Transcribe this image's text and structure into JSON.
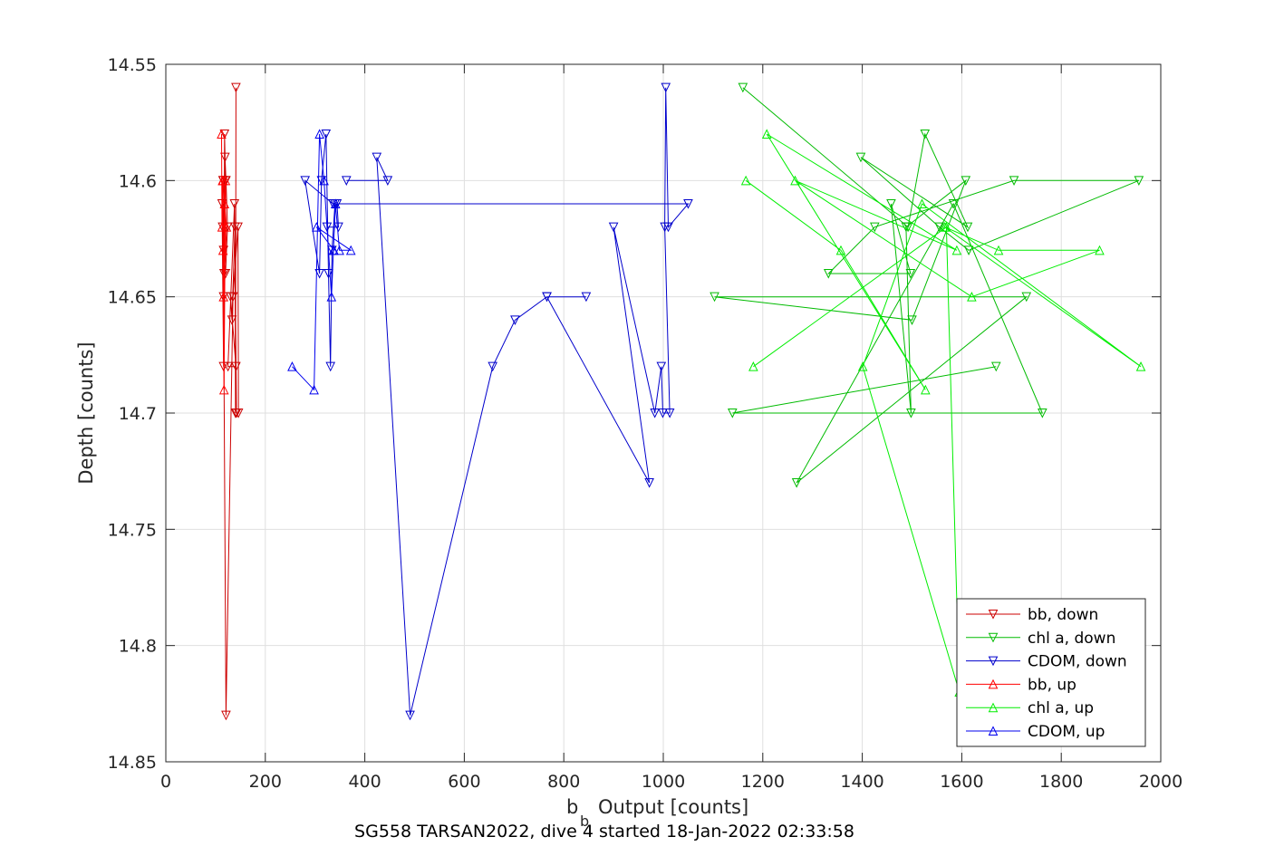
{
  "figure": {
    "caption": "SG558 TARSAN2022, dive 4 started 18-Jan-2022 02:33:58"
  },
  "chart_data": {
    "type": "line",
    "xlabel_main": "b",
    "xlabel_sub": "b",
    "xlabel_rest": "Output [counts]",
    "ylabel": "Depth [counts]",
    "xlim": [
      0,
      2000
    ],
    "ylim": [
      14.55,
      14.85
    ],
    "y_reversed": true,
    "grid": true,
    "legend_placement": "bottom-right",
    "x_ticks": [
      0,
      200,
      400,
      600,
      800,
      1000,
      1200,
      1400,
      1600,
      1800,
      2000
    ],
    "x_tick_labels": [
      "0",
      "200",
      "400",
      "600",
      "800",
      "1000",
      "1200",
      "1400",
      "1600",
      "1800",
      "2000"
    ],
    "y_ticks": [
      14.55,
      14.6,
      14.65,
      14.7,
      14.75,
      14.8,
      14.85
    ],
    "y_tick_labels": [
      "14.55",
      "14.6",
      "14.65",
      "14.7",
      "14.75",
      "14.8",
      "14.85"
    ],
    "series": [
      {
        "name": "bb, down",
        "color": "#cc0000",
        "marker": "triangle-down",
        "points": [
          [
            141,
            14.56
          ],
          [
            140,
            14.7
          ],
          [
            139,
            14.62
          ],
          [
            133,
            14.66
          ],
          [
            130,
            14.65
          ],
          [
            141,
            14.68
          ],
          [
            125,
            14.68
          ],
          [
            138,
            14.61
          ],
          [
            142,
            14.7
          ],
          [
            146,
            14.7
          ],
          [
            145,
            14.62
          ],
          [
            135,
            14.65
          ],
          [
            121,
            14.83
          ],
          [
            116,
            14.65
          ],
          [
            120,
            14.6
          ],
          [
            118,
            14.58
          ],
          [
            117,
            14.64
          ],
          [
            115,
            14.6
          ],
          [
            114,
            14.62
          ],
          [
            113,
            14.61
          ],
          [
            116,
            14.68
          ],
          [
            119,
            14.59
          ],
          [
            121,
            14.6
          ],
          [
            124,
            14.62
          ],
          [
            120,
            14.64
          ],
          [
            116,
            14.63
          ],
          [
            115,
            14.6
          ]
        ]
      },
      {
        "name": "chl a, down",
        "color": "#00bb00",
        "marker": "triangle-down",
        "points": [
          [
            1160,
            14.56
          ],
          [
            1492,
            14.62
          ],
          [
            1526,
            14.58
          ],
          [
            1612,
            14.62
          ],
          [
            1397,
            14.59
          ],
          [
            1555,
            14.62
          ],
          [
            1614,
            14.63
          ],
          [
            1956,
            14.6
          ],
          [
            1705,
            14.6
          ],
          [
            1425,
            14.62
          ],
          [
            1332,
            14.64
          ],
          [
            1497,
            14.64
          ],
          [
            1458,
            14.61
          ],
          [
            1498,
            14.7
          ],
          [
            1488,
            14.62
          ],
          [
            1608,
            14.6
          ],
          [
            1500,
            14.66
          ],
          [
            1103,
            14.65
          ],
          [
            1730,
            14.65
          ],
          [
            1268,
            14.73
          ],
          [
            1583,
            14.61
          ],
          [
            1762,
            14.7
          ],
          [
            1139,
            14.7
          ],
          [
            1669,
            14.68
          ]
        ]
      },
      {
        "name": "CDOM, down",
        "color": "#0000cc",
        "marker": "triangle-down",
        "points": [
          [
            363,
            14.6
          ],
          [
            446,
            14.6
          ],
          [
            424,
            14.59
          ],
          [
            491,
            14.83
          ],
          [
            657,
            14.68
          ],
          [
            702,
            14.66
          ],
          [
            766,
            14.65
          ],
          [
            845,
            14.65
          ],
          [
            766,
            14.65
          ],
          [
            972,
            14.73
          ],
          [
            900,
            14.62
          ],
          [
            983,
            14.7
          ],
          [
            996,
            14.68
          ],
          [
            999,
            14.7
          ],
          [
            1013,
            14.7
          ],
          [
            1003,
            14.62
          ],
          [
            1005,
            14.56
          ],
          [
            1010,
            14.62
          ],
          [
            1050,
            14.61
          ],
          [
            336,
            14.61
          ],
          [
            280,
            14.6
          ],
          [
            309,
            14.64
          ],
          [
            313,
            14.6
          ],
          [
            322,
            14.58
          ],
          [
            327,
            14.64
          ],
          [
            331,
            14.68
          ],
          [
            334,
            14.63
          ],
          [
            340,
            14.61
          ],
          [
            344,
            14.61
          ],
          [
            347,
            14.62
          ],
          [
            324,
            14.62
          ]
        ]
      },
      {
        "name": "bb, up",
        "color": "#ff0000",
        "marker": "triangle-up",
        "points": [
          [
            112,
            14.58
          ],
          [
            113,
            14.62
          ],
          [
            114,
            14.6
          ],
          [
            115,
            14.63
          ],
          [
            117,
            14.69
          ],
          [
            120,
            14.6
          ],
          [
            118,
            14.61
          ],
          [
            116,
            14.65
          ],
          [
            122,
            14.62
          ],
          [
            115,
            14.6
          ]
        ]
      },
      {
        "name": "chl a, up",
        "color": "#00ee00",
        "marker": "triangle-up",
        "points": [
          [
            1166,
            14.6
          ],
          [
            1357,
            14.63
          ],
          [
            1527,
            14.69
          ],
          [
            1208,
            14.58
          ],
          [
            1590,
            14.63
          ],
          [
            1265,
            14.6
          ],
          [
            1620,
            14.65
          ],
          [
            1877,
            14.63
          ],
          [
            1674,
            14.63
          ],
          [
            1566,
            14.62
          ],
          [
            1960,
            14.68
          ],
          [
            1520,
            14.61
          ],
          [
            1401,
            14.68
          ],
          [
            1595,
            14.82
          ],
          [
            1569,
            14.62
          ],
          [
            1181,
            14.68
          ]
        ]
      },
      {
        "name": "CDOM, up",
        "color": "#0000ee",
        "marker": "triangle-up",
        "points": [
          [
            254,
            14.68
          ],
          [
            298,
            14.69
          ],
          [
            309,
            14.58
          ],
          [
            318,
            14.6
          ],
          [
            333,
            14.65
          ],
          [
            337,
            14.63
          ],
          [
            341,
            14.61
          ],
          [
            349,
            14.63
          ],
          [
            372,
            14.63
          ],
          [
            303,
            14.62
          ],
          [
            338,
            14.63
          ]
        ]
      }
    ]
  }
}
